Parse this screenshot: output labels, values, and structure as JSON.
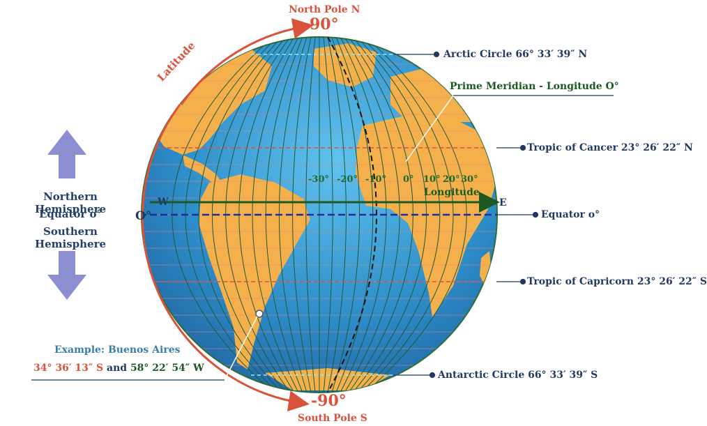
{
  "poles": {
    "north_label": "North Pole N",
    "north_degree": "90°",
    "south_label": "South Pole S",
    "south_degree": "-90°"
  },
  "latitude_label": "Latitude",
  "hemisphere_labels": {
    "northern": "Northern Hemisphere",
    "equator": "Equator o°",
    "southern": "Southern Hemisphere"
  },
  "equator_zero": "O°",
  "directions": {
    "west": "W",
    "east": "E"
  },
  "longitude": {
    "label": "Longitude",
    "ticks": [
      "-30°",
      "-20°",
      "-10°",
      "0°",
      "10°",
      "20°",
      "30°"
    ]
  },
  "reference_lines": {
    "arctic_circle": "Arctic Circle 66° 33′ 39″ N",
    "prime_meridian": "Prime Meridian - Longitude O°",
    "tropic_of_cancer": "Tropic of Cancer 23° 26′ 22″ N",
    "equator": "Equator o°",
    "tropic_of_capricorn": "Tropic of Capricorn 23° 26′ 22″ S",
    "antarctic_circle": "Antarctic Circle 66° 33′ 39″ S"
  },
  "example": {
    "title": "Example:  Buenos Aires",
    "latitude": "34° 36′ 13″ S",
    "joiner": "and",
    "longitude": "58° 22′ 54″ W"
  },
  "colors": {
    "ocean": "#2e8fc8",
    "land": "#f4b04a",
    "grid": "#1f5a3a",
    "accent_red": "#d9533a",
    "arrow_purple": "#8b8fd0",
    "text_navy": "#1f3a5f",
    "equator_line": "#1a2fa0",
    "longitude_green": "#1b6a2a"
  }
}
